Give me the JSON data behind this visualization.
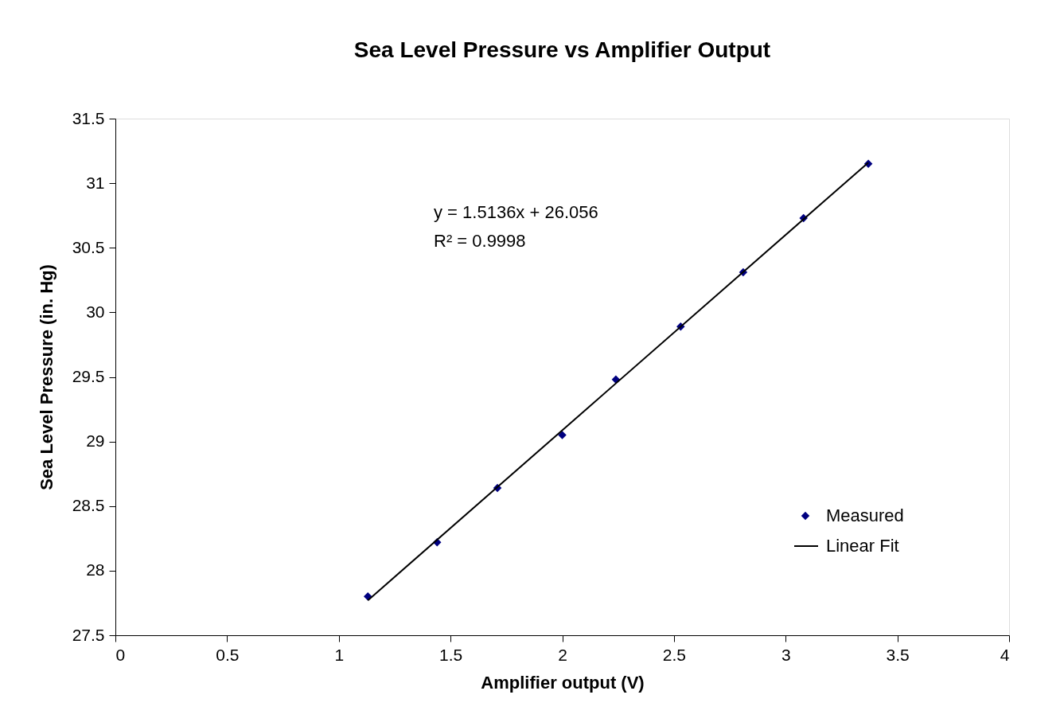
{
  "chart_data": {
    "type": "scatter",
    "title": "Sea Level Pressure vs Amplifier Output",
    "xlabel": "Amplifier output (V)",
    "ylabel": "Sea Level Pressure (in. Hg)",
    "series": [
      {
        "name": "Measured",
        "color": "#000080",
        "marker": "diamond",
        "x": [
          1.13,
          1.44,
          1.71,
          2.0,
          2.24,
          2.53,
          2.81,
          3.08,
          3.37
        ],
        "values": [
          27.8,
          28.22,
          28.64,
          29.05,
          29.48,
          29.89,
          30.31,
          30.73,
          31.15
        ]
      },
      {
        "name": "Linear Fit",
        "type": "line",
        "color": "#000000",
        "line_style": "solid",
        "x": [
          1.13,
          3.37
        ],
        "values": [
          27.77,
          31.16
        ]
      }
    ],
    "annotations": [
      "y = 1.5136x + 26.056",
      "R² = 0.9998"
    ],
    "xlim": [
      0,
      4
    ],
    "xticks": [
      0,
      0.5,
      1,
      1.5,
      2,
      2.5,
      3,
      3.5,
      4
    ],
    "ylim": [
      27.5,
      31.5
    ],
    "yticks": [
      27.5,
      28,
      28.5,
      29,
      29.5,
      30,
      30.5,
      31,
      31.5
    ],
    "grid": false,
    "legend": "bottom right"
  }
}
